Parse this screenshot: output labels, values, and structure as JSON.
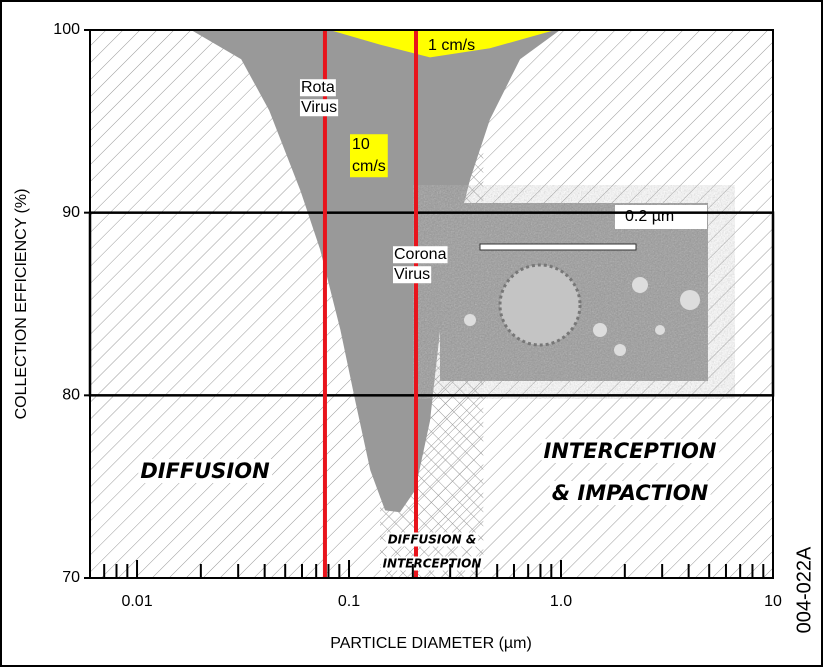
{
  "chart_data": {
    "type": "area",
    "y_label": "COLLECTION EFFICIENCY (%)",
    "x_label": "PARTICLE DIAMETER (µm)",
    "x_log": true,
    "xlim": [
      0.006,
      10
    ],
    "ylim": [
      70,
      100
    ],
    "xticks": [
      0.01,
      0.1,
      {
        "value": 1,
        "label": "1.0"
      },
      10
    ],
    "x_minor_ticks": [
      0.007,
      0.008,
      0.009,
      0.02,
      0.03,
      0.04,
      0.05,
      0.06,
      0.07,
      0.08,
      0.09,
      0.2,
      0.3,
      0.4,
      0.5,
      0.6,
      0.7,
      0.8,
      0.9,
      2,
      3,
      4,
      5,
      6,
      7,
      8,
      9
    ],
    "yticks": [
      70,
      80,
      90,
      100
    ],
    "series": [
      {
        "name": "10 cm/s",
        "color": "#999999",
        "x": [
          0.018,
          0.031,
          0.042,
          0.059,
          0.073,
          0.091,
          0.107,
          0.126,
          0.148,
          0.174,
          0.205,
          0.241,
          0.269,
          0.299,
          0.372,
          0.462,
          0.641,
          0.99
        ],
        "values": [
          100,
          98.4,
          95.6,
          91.2,
          88.0,
          83.6,
          79.7,
          75.9,
          73.7,
          73.6,
          74.8,
          78.6,
          83.6,
          87.4,
          91.8,
          95.1,
          98.4,
          100
        ]
      },
      {
        "name": "1 cm/s",
        "color": "#ffff00",
        "x": [
          0.081,
          0.14,
          0.241,
          0.462,
          0.937
        ],
        "values": [
          100,
          99.2,
          98.5,
          99.0,
          100
        ]
      }
    ],
    "highlight_range": [
      80,
      90
    ],
    "reference_lines": [
      {
        "x": 0.077,
        "label": [
          "Rota",
          "Virus"
        ],
        "color": "#e8141c"
      },
      {
        "x": 0.207,
        "label": [
          "Corona",
          "Virus"
        ],
        "color": "#e8141c"
      }
    ],
    "regions": [
      {
        "label": [
          "DIFFUSION"
        ]
      },
      {
        "label": [
          "DIFFUSION &",
          "INTERCEPTION"
        ],
        "xrange": [
          0.14,
          0.43
        ]
      },
      {
        "label": [
          "INTERCEPTION",
          "& IMPACTION"
        ]
      }
    ],
    "inset_scale": "0.2 µm",
    "figure_id": "004-022A"
  }
}
